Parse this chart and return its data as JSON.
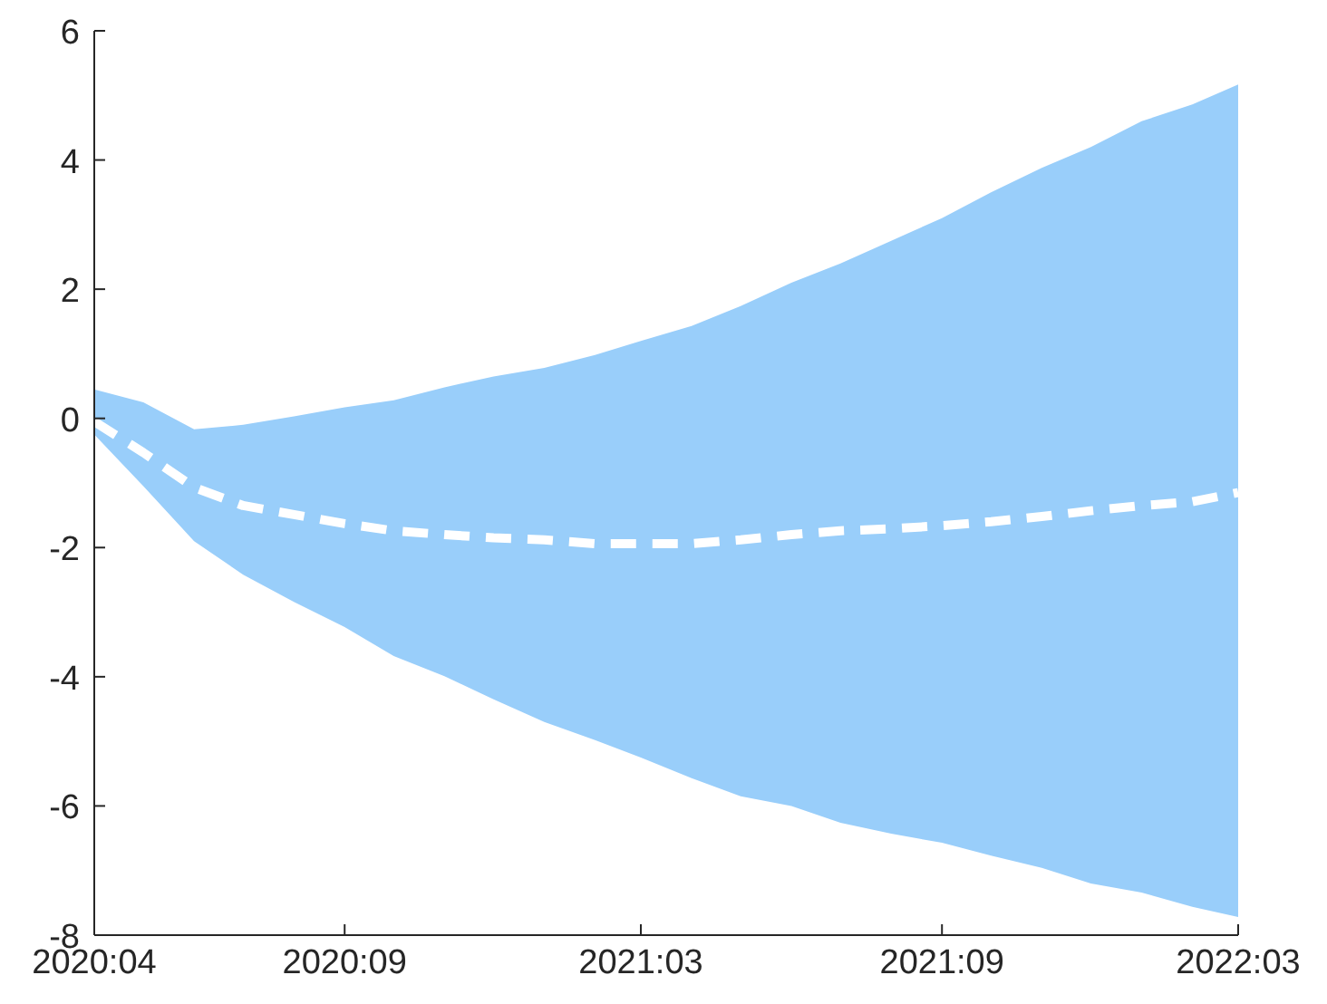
{
  "chart_data": {
    "type": "line",
    "x": [
      "2020-04",
      "2020-05",
      "2020-06",
      "2020-07",
      "2020-08",
      "2020-09",
      "2020-10",
      "2020-11",
      "2020-12",
      "2021-01",
      "2021-02",
      "2021-03",
      "2021-04",
      "2021-05",
      "2021-06",
      "2021-07",
      "2021-08",
      "2021-09",
      "2021-10",
      "2021-11",
      "2021-12",
      "2022-01",
      "2022-02",
      "2022-03"
    ],
    "series": [
      {
        "color": "#ffffff",
        "line_style": "dashed",
        "values": [
          -0.05,
          -0.53,
          -1.07,
          -1.35,
          -1.49,
          -1.63,
          -1.74,
          -1.8,
          -1.85,
          -1.88,
          -1.94,
          -1.94,
          -1.94,
          -1.88,
          -1.8,
          -1.74,
          -1.71,
          -1.66,
          -1.6,
          -1.52,
          -1.43,
          -1.35,
          -1.29,
          -1.15
        ],
        "lower": [
          -0.25,
          -1.05,
          -1.9,
          -2.42,
          -2.84,
          -3.23,
          -3.68,
          -3.99,
          -4.35,
          -4.7,
          -4.98,
          -5.25,
          -5.57,
          -5.85,
          -6.0,
          -6.26,
          -6.43,
          -6.57,
          -6.77,
          -6.96,
          -7.2,
          -7.34,
          -7.56,
          -7.72
        ],
        "upper": [
          0.45,
          0.25,
          -0.17,
          -0.1,
          0.03,
          0.17,
          0.28,
          0.48,
          0.65,
          0.78,
          0.98,
          1.2,
          1.43,
          1.74,
          2.1,
          2.4,
          2.75,
          3.1,
          3.5,
          3.88,
          4.2,
          4.6,
          4.86,
          5.17
        ]
      }
    ],
    "xlim": [
      "2020-04",
      "2022-03"
    ],
    "xticks": [
      {
        "value": "2020-04",
        "label": "2020:04"
      },
      {
        "value": "2020-09",
        "label": "2020:09"
      },
      {
        "value": "2021-03",
        "label": "2021:03"
      },
      {
        "value": "2021-09",
        "label": "2021:09"
      },
      {
        "value": "2022-03",
        "label": "2022:03"
      }
    ],
    "ylim": [
      -8,
      6
    ],
    "yticks": [
      -8,
      -6,
      -4,
      -2,
      0,
      2,
      4,
      6
    ]
  }
}
